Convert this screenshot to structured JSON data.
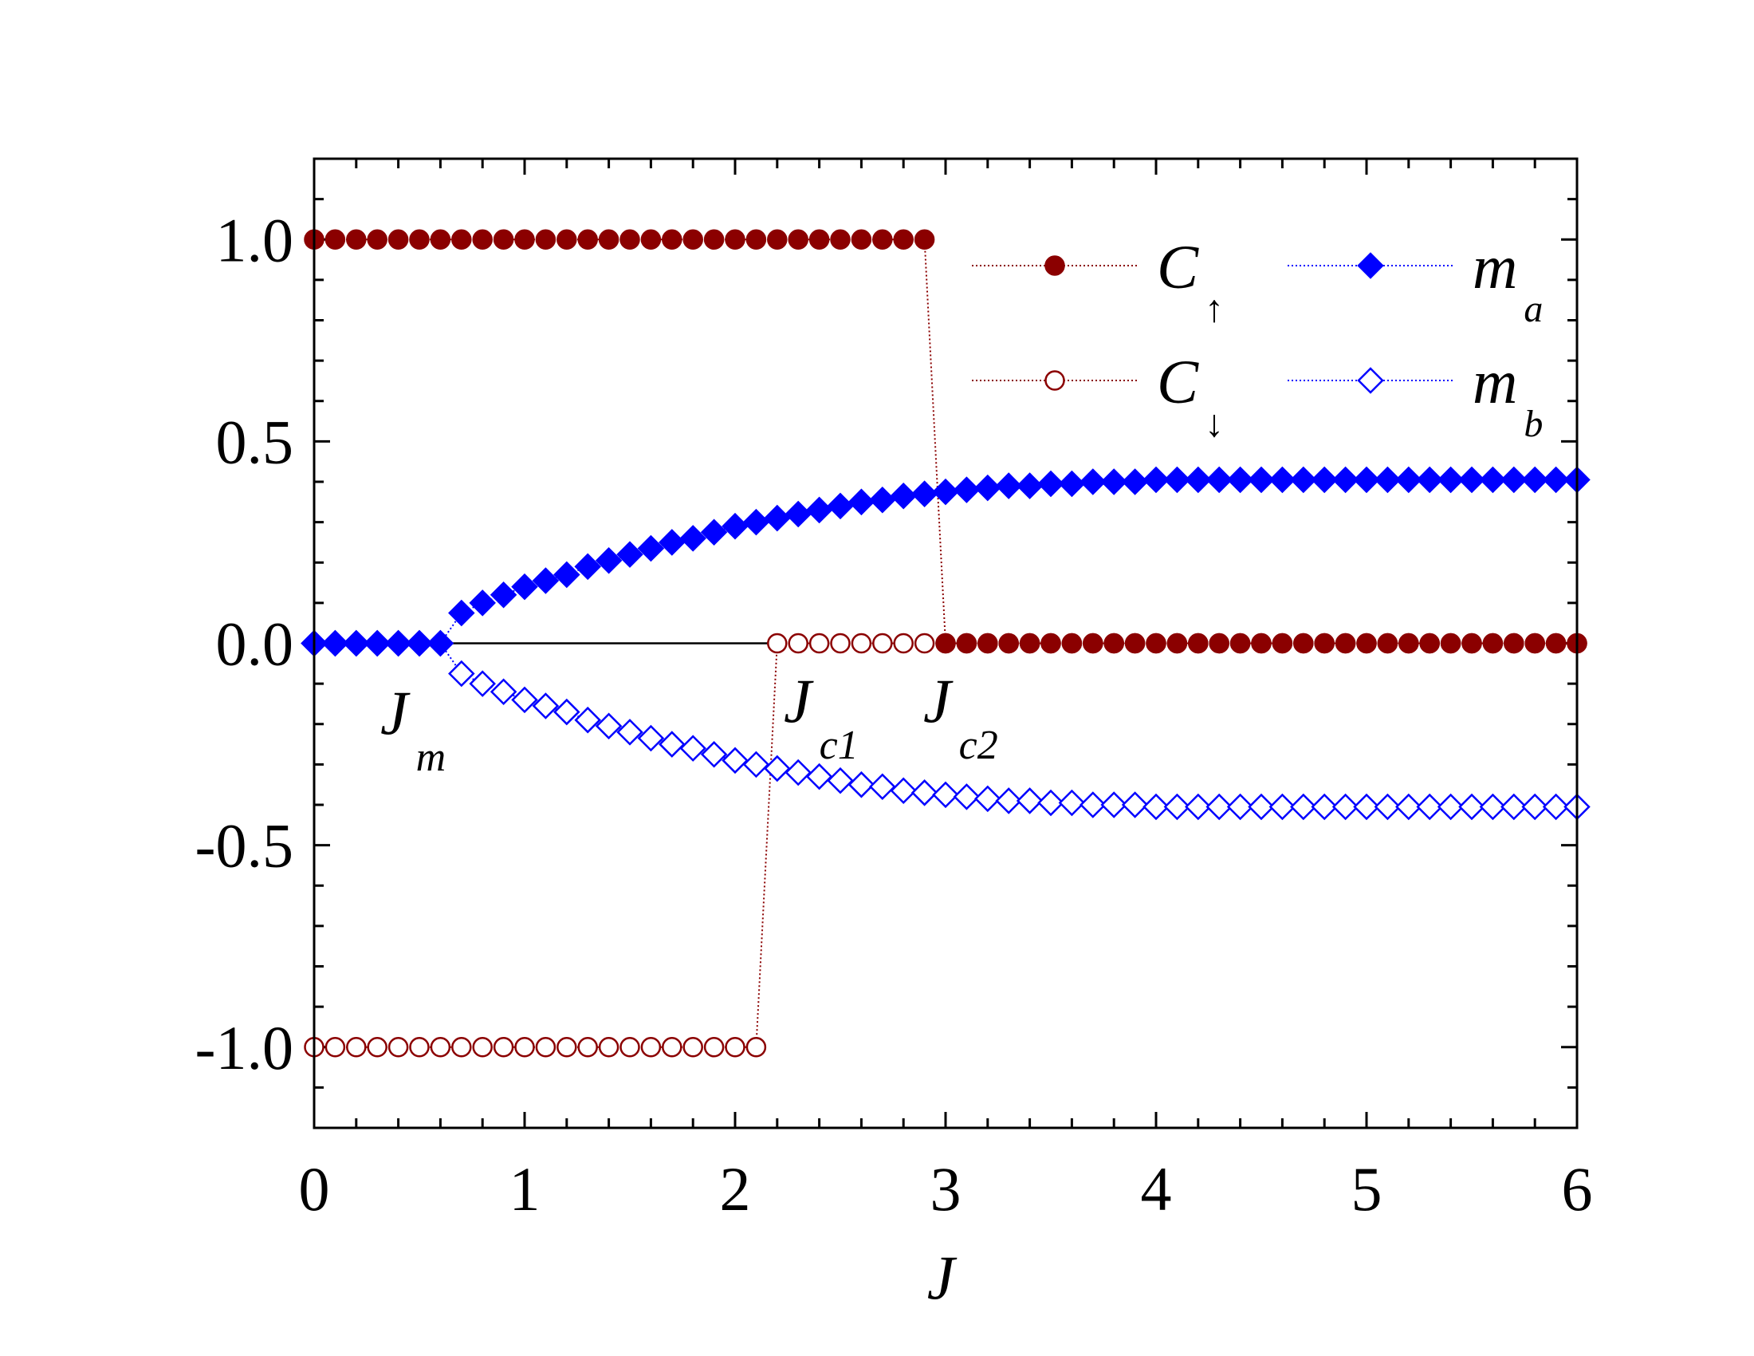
{
  "chart_data": {
    "type": "line",
    "xlabel": "J",
    "x": [
      0,
      0.1,
      0.2,
      0.3,
      0.4,
      0.5,
      0.6,
      0.7,
      0.8,
      0.9,
      1,
      1.1,
      1.2,
      1.3,
      1.4,
      1.5,
      1.6,
      1.7,
      1.8,
      1.9,
      2,
      2.1,
      2.2,
      2.3,
      2.4,
      2.5,
      2.6,
      2.7,
      2.8,
      2.9,
      3,
      3.1,
      3.2,
      3.3,
      3.4,
      3.5,
      3.6,
      3.7,
      3.8,
      3.9,
      4,
      4.1,
      4.2,
      4.3,
      4.4,
      4.5,
      4.6,
      4.7,
      4.8,
      4.9,
      5,
      5.1,
      5.2,
      5.3,
      5.4,
      5.5,
      5.6,
      5.7,
      5.8,
      5.9,
      6
    ],
    "series": [
      {
        "name": "C",
        "subscript": "↑",
        "color": "#8b0000",
        "marker": "circle",
        "filled": true,
        "values": [
          1,
          1,
          1,
          1,
          1,
          1,
          1,
          1,
          1,
          1,
          1,
          1,
          1,
          1,
          1,
          1,
          1,
          1,
          1,
          1,
          1,
          1,
          1,
          1,
          1,
          1,
          1,
          1,
          1,
          1,
          0,
          0,
          0,
          0,
          0,
          0,
          0,
          0,
          0,
          0,
          0,
          0,
          0,
          0,
          0,
          0,
          0,
          0,
          0,
          0,
          0,
          0,
          0,
          0,
          0,
          0,
          0,
          0,
          0,
          0,
          0
        ]
      },
      {
        "name": "C",
        "subscript": "↓",
        "color": "#8b0000",
        "marker": "circle",
        "filled": false,
        "values": [
          -1,
          -1,
          -1,
          -1,
          -1,
          -1,
          -1,
          -1,
          -1,
          -1,
          -1,
          -1,
          -1,
          -1,
          -1,
          -1,
          -1,
          -1,
          -1,
          -1,
          -1,
          -1,
          0,
          0,
          0,
          0,
          0,
          0,
          0,
          0,
          0,
          0,
          0,
          0,
          0,
          0,
          0,
          0,
          0,
          0,
          0,
          0,
          0,
          0,
          0,
          0,
          0,
          0,
          0,
          0,
          0,
          0,
          0,
          0,
          0,
          0,
          0,
          0,
          0,
          0,
          0
        ]
      },
      {
        "name": "m",
        "subscript": "a",
        "color": "#0000ff",
        "marker": "diamond",
        "filled": true,
        "values": [
          0,
          0,
          0,
          0,
          0,
          0,
          0,
          0.075,
          0.1,
          0.12,
          0.14,
          0.155,
          0.17,
          0.19,
          0.205,
          0.22,
          0.235,
          0.25,
          0.26,
          0.275,
          0.29,
          0.3,
          0.31,
          0.32,
          0.33,
          0.34,
          0.35,
          0.355,
          0.365,
          0.37,
          0.375,
          0.38,
          0.385,
          0.39,
          0.39,
          0.395,
          0.395,
          0.4,
          0.4,
          0.4,
          0.405,
          0.405,
          0.405,
          0.405,
          0.405,
          0.405,
          0.405,
          0.405,
          0.405,
          0.405,
          0.405,
          0.405,
          0.405,
          0.405,
          0.405,
          0.405,
          0.405,
          0.405,
          0.405,
          0.405,
          0.405
        ]
      },
      {
        "name": "m",
        "subscript": "b",
        "color": "#0000ff",
        "marker": "diamond",
        "filled": false,
        "values": [
          0,
          0,
          0,
          0,
          0,
          0,
          0,
          -0.075,
          -0.1,
          -0.12,
          -0.14,
          -0.155,
          -0.17,
          -0.19,
          -0.205,
          -0.22,
          -0.235,
          -0.25,
          -0.26,
          -0.275,
          -0.29,
          -0.3,
          -0.31,
          -0.32,
          -0.33,
          -0.34,
          -0.35,
          -0.355,
          -0.365,
          -0.37,
          -0.375,
          -0.38,
          -0.385,
          -0.39,
          -0.39,
          -0.395,
          -0.395,
          -0.4,
          -0.4,
          -0.4,
          -0.405,
          -0.405,
          -0.405,
          -0.405,
          -0.405,
          -0.405,
          -0.405,
          -0.405,
          -0.405,
          -0.405,
          -0.405,
          -0.405,
          -0.405,
          -0.405,
          -0.405,
          -0.405,
          -0.405,
          -0.405,
          -0.405,
          -0.405,
          -0.405
        ]
      }
    ],
    "hline": {
      "y": 0,
      "xmin": 0.6,
      "xmax": 2.2
    },
    "annotations": [
      {
        "text": "J",
        "subscript": "m"
      },
      {
        "text": "J",
        "subscript": "c1"
      },
      {
        "text": "J",
        "subscript": "c2"
      }
    ],
    "xlim": [
      0,
      6
    ],
    "xticks": [
      0,
      1,
      2,
      3,
      4,
      5,
      6
    ],
    "xminorticks": [
      0.2,
      0.4,
      0.6,
      0.8,
      1.2,
      1.4,
      1.6,
      1.8,
      2.2,
      2.4,
      2.6,
      2.8,
      3.2,
      3.4,
      3.6,
      3.8,
      4.2,
      4.4,
      4.6,
      4.8,
      5.2,
      5.4,
      5.6,
      5.8
    ],
    "ylim": [
      -1.2,
      1.2
    ],
    "yticks": [
      {
        "value": -1,
        "label": "-1.0"
      },
      {
        "value": -0.5,
        "label": "-0.5"
      },
      {
        "value": 0,
        "label": "0.0"
      },
      {
        "value": 0.5,
        "label": "0.5"
      },
      {
        "value": 1,
        "label": "1.0"
      }
    ],
    "yminorticks": [
      -1.1,
      -0.9,
      -0.8,
      -0.7,
      -0.6,
      -0.4,
      -0.3,
      -0.2,
      -0.1,
      0.1,
      0.2,
      0.3,
      0.4,
      0.6,
      0.7,
      0.8,
      0.9,
      1.1
    ],
    "grid": false
  }
}
